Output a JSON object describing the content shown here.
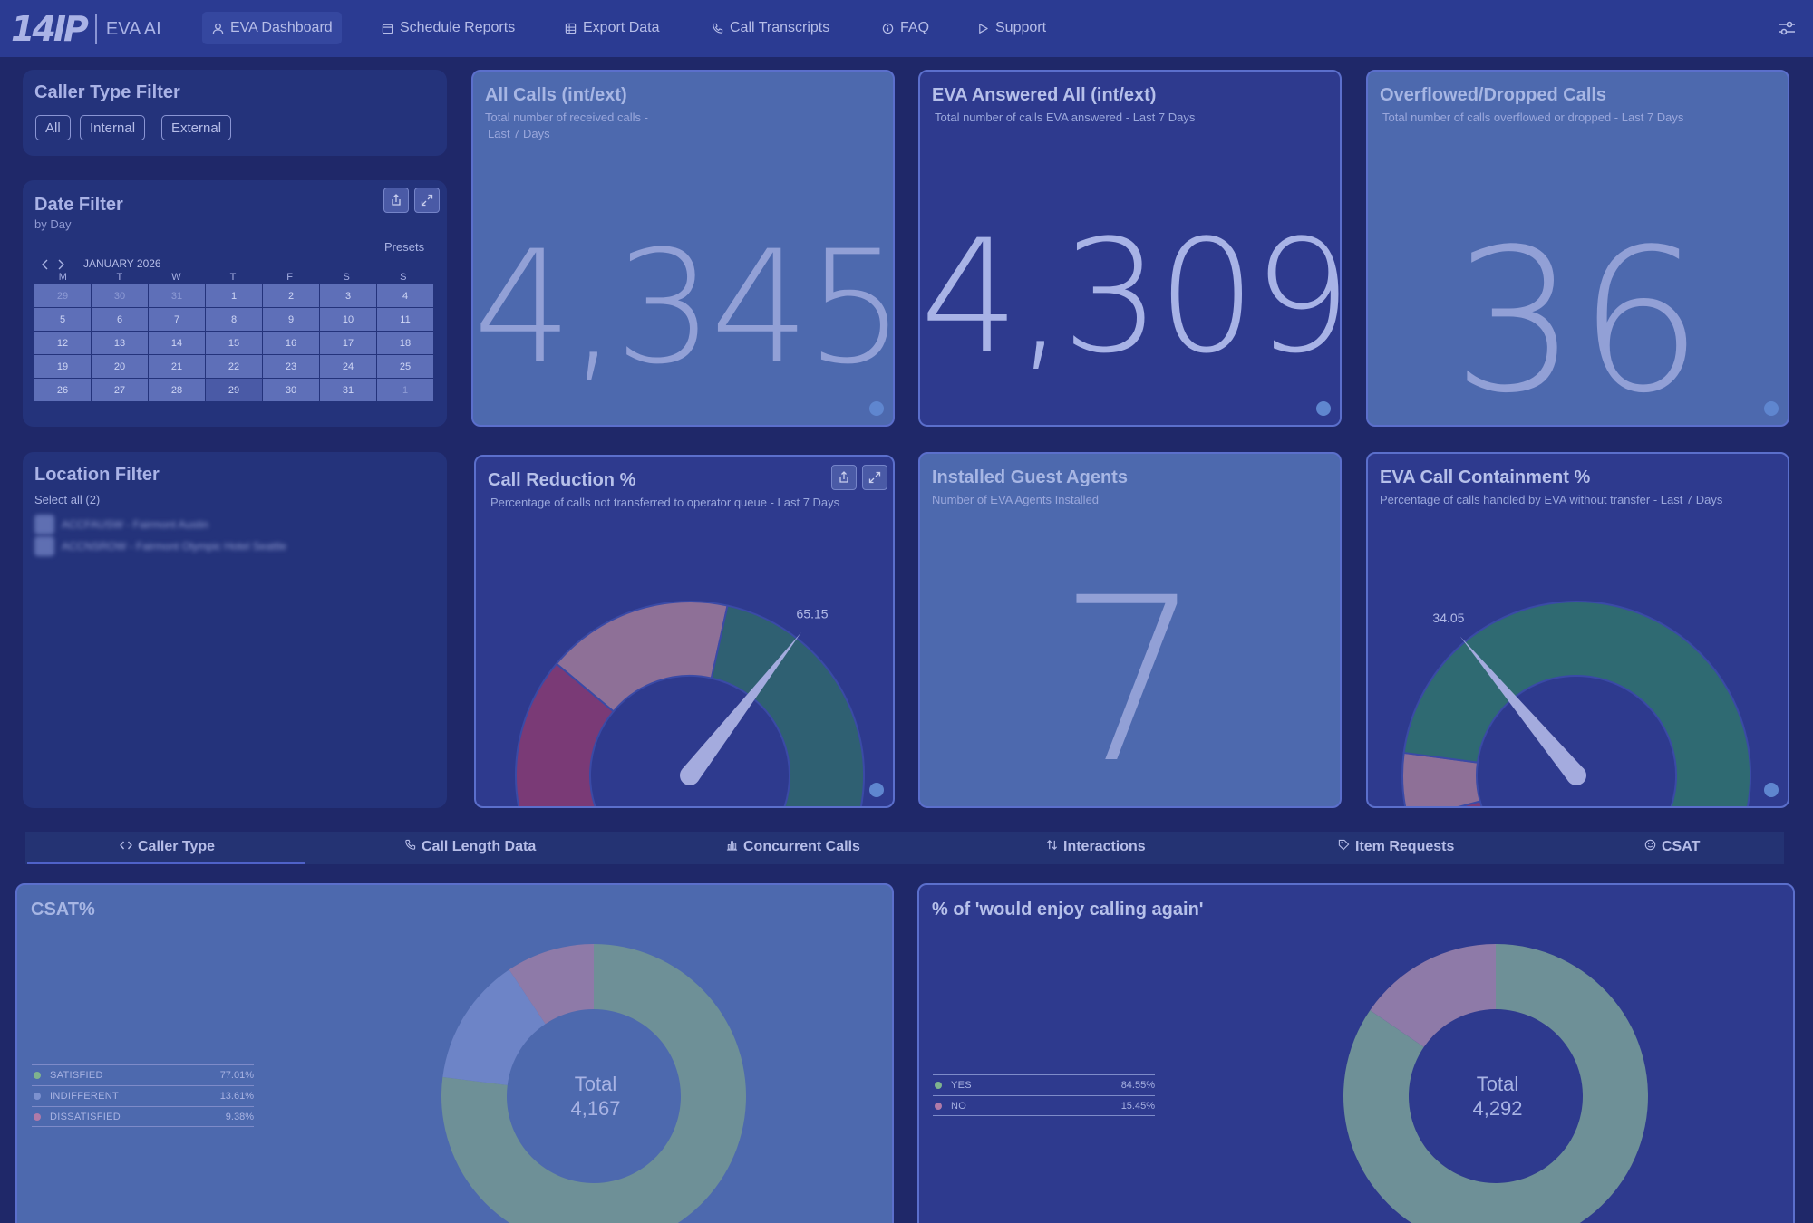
{
  "nav": {
    "logo": "14IP",
    "product": "EVA AI",
    "items": [
      {
        "label": "EVA Dashboard",
        "icon": "user-icon"
      },
      {
        "label": "Schedule Reports",
        "icon": "calendar-icon"
      },
      {
        "label": "Export Data",
        "icon": "table-icon"
      },
      {
        "label": "Call Transcripts",
        "icon": "phone-icon"
      },
      {
        "label": "FAQ",
        "icon": "info-icon"
      },
      {
        "label": "Support",
        "icon": "play-icon"
      }
    ]
  },
  "caller_filter": {
    "title": "Caller Type Filter",
    "options": [
      "All",
      "Internal",
      "External"
    ]
  },
  "date_filter": {
    "title": "Date Filter",
    "subtitle": "by Day",
    "presets": "Presets",
    "month": "JANUARY 2026",
    "weekdays": [
      "M",
      "T",
      "W",
      "T",
      "F",
      "S",
      "S"
    ],
    "days": [
      "29",
      "30",
      "31",
      "1",
      "2",
      "3",
      "4",
      "5",
      "6",
      "7",
      "8",
      "9",
      "10",
      "11",
      "12",
      "13",
      "14",
      "15",
      "16",
      "17",
      "18",
      "19",
      "20",
      "21",
      "22",
      "23",
      "24",
      "25",
      "26",
      "27",
      "28",
      "29",
      "30",
      "31",
      "1"
    ]
  },
  "location_filter": {
    "title": "Location Filter",
    "select_all": "Select all (2)",
    "items": [
      "ACCFAUSW - Fairmont Austin",
      "ACCNSROW - Fairmont Olympic Hotel Seattle"
    ]
  },
  "kpis": {
    "all_calls": {
      "title": "All Calls (int/ext)",
      "subtitle_1": "Total number of received calls -",
      "subtitle_2": "Last 7 Days",
      "value": "4,345"
    },
    "eva_answered": {
      "title": "EVA Answered All (int/ext)",
      "subtitle": "Total number of calls EVA answered - Last 7 Days",
      "value": "4,309"
    },
    "overflowed": {
      "title": "Overflowed/Dropped Calls",
      "subtitle": "Total number of calls overflowed or dropped - Last 7 Days",
      "value": "36"
    },
    "guest_agents": {
      "title": "Installed Guest Agents",
      "subtitle": "Number of EVA Agents Installed",
      "value": "7"
    }
  },
  "gauges": {
    "call_reduction": {
      "title": "Call Reduction %",
      "subtitle": "Percentage of calls not transferred to operator queue - Last 7 Days",
      "value": 65.15,
      "value_label": "65.15",
      "max_label": "100",
      "min": 0,
      "max": 100,
      "bands": [
        0,
        30,
        55,
        100
      ],
      "colors": [
        "#7a3a76",
        "#8e7097",
        "#2f6072"
      ]
    },
    "containment": {
      "title": "EVA Call Containment %",
      "subtitle": "Percentage of calls handled by EVA without transfer -  Last 7 Days",
      "value": 34.05,
      "value_label": "34.05",
      "max_label": "100",
      "min": 0,
      "max": 100,
      "bands": [
        0,
        8,
        17,
        100
      ],
      "colors": [
        "#7a3a76",
        "#8e7097",
        "#2f6a72"
      ]
    }
  },
  "tabs": [
    {
      "label": "Caller Type",
      "icon": "code-icon"
    },
    {
      "label": "Call Length Data",
      "icon": "phone-icon"
    },
    {
      "label": "Concurrent Calls",
      "icon": "bar-chart-icon"
    },
    {
      "label": "Interactions",
      "icon": "sort-icon"
    },
    {
      "label": "Item Requests",
      "icon": "tag-icon"
    },
    {
      "label": "CSAT",
      "icon": "smile-icon"
    }
  ],
  "chart_data": [
    {
      "type": "pie",
      "title": "CSAT%",
      "categories": [
        "SATISFIED",
        "INDIFFERENT",
        "DISSATISFIED"
      ],
      "values": [
        77.01,
        13.61,
        9.38
      ],
      "value_labels": [
        "77.01%",
        "13.61%",
        "9.38%"
      ],
      "colors": [
        "#6e9097",
        "#6d84c7",
        "#8e7aa8"
      ],
      "center_label": "Total",
      "center_value": "4,167"
    },
    {
      "type": "pie",
      "title": "% of 'would enjoy calling again'",
      "categories": [
        "YES",
        "NO"
      ],
      "values": [
        84.55,
        15.45
      ],
      "value_labels": [
        "84.55%",
        "15.45%"
      ],
      "colors": [
        "#6e9097",
        "#8e7aa8"
      ],
      "center_label": "Total",
      "center_value": "4,292"
    }
  ]
}
